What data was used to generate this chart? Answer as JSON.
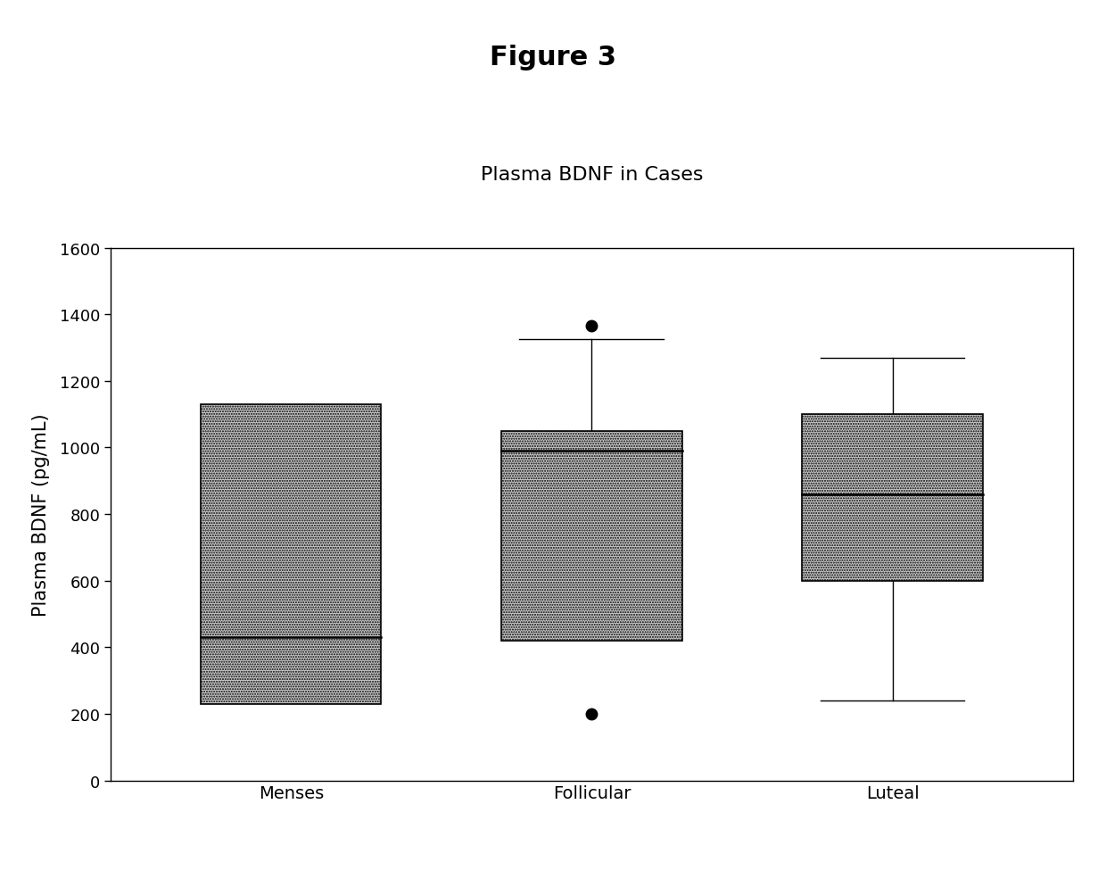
{
  "title": "Figure 3",
  "subtitle": "Plasma BDNF in Cases",
  "ylabel": "Plasma BDNF (pg/mL)",
  "categories": [
    "Menses",
    "Follicular",
    "Luteal"
  ],
  "boxes": [
    {
      "label": "Menses",
      "q1": 230,
      "median": 430,
      "q3": 1130,
      "whisker_low": 230,
      "whisker_high": 1130,
      "outliers": []
    },
    {
      "label": "Follicular",
      "q1": 420,
      "median": 990,
      "q3": 1050,
      "whisker_low": 420,
      "whisker_high": 1325,
      "outliers": [
        200,
        1365
      ]
    },
    {
      "label": "Luteal",
      "q1": 600,
      "median": 860,
      "q3": 1100,
      "whisker_low": 240,
      "whisker_high": 1270,
      "outliers": []
    }
  ],
  "ylim": [
    0,
    1600
  ],
  "yticks": [
    0,
    200,
    400,
    600,
    800,
    1000,
    1200,
    1400,
    1600
  ],
  "box_color": "#c8c8c8",
  "box_edge_color": "#000000",
  "median_color": "#000000",
  "whisker_color": "#000000",
  "outlier_color": "#000000",
  "background_color": "#ffffff",
  "title_fontsize": 22,
  "subtitle_fontsize": 16,
  "ylabel_fontsize": 15,
  "tick_fontsize": 13,
  "xlabel_fontsize": 14,
  "box_width": 0.6,
  "positions": [
    1,
    2,
    3
  ]
}
